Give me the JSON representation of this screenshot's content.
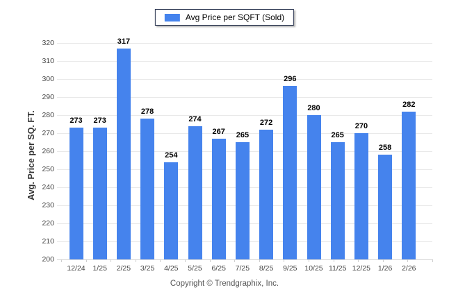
{
  "legend": {
    "label": "Avg Price per SQFT (Sold)",
    "swatch_color": "#4583ED"
  },
  "chart_data": {
    "type": "bar",
    "title": "",
    "series_name": "Avg Price per SQFT (Sold)",
    "categories": [
      "12/24",
      "1/25",
      "2/25",
      "3/25",
      "4/25",
      "5/25",
      "6/25",
      "7/25",
      "8/25",
      "9/25",
      "10/25",
      "11/25",
      "12/25",
      "1/26",
      "2/26"
    ],
    "values": [
      273,
      273,
      317,
      278,
      254,
      274,
      267,
      265,
      272,
      296,
      280,
      265,
      270,
      258,
      282
    ],
    "xlabel": "",
    "ylabel": "Avg. Price per SQ. FT.",
    "ylim": [
      200,
      320
    ],
    "ytick_step": 10,
    "yticks": [
      200,
      210,
      220,
      230,
      240,
      250,
      260,
      270,
      280,
      290,
      300,
      310,
      320
    ],
    "bar_color": "#4583ED",
    "grid": true,
    "legend_position": "top",
    "value_labels": true
  },
  "footer": {
    "copyright": "Copyright © Trendgraphix, Inc."
  }
}
